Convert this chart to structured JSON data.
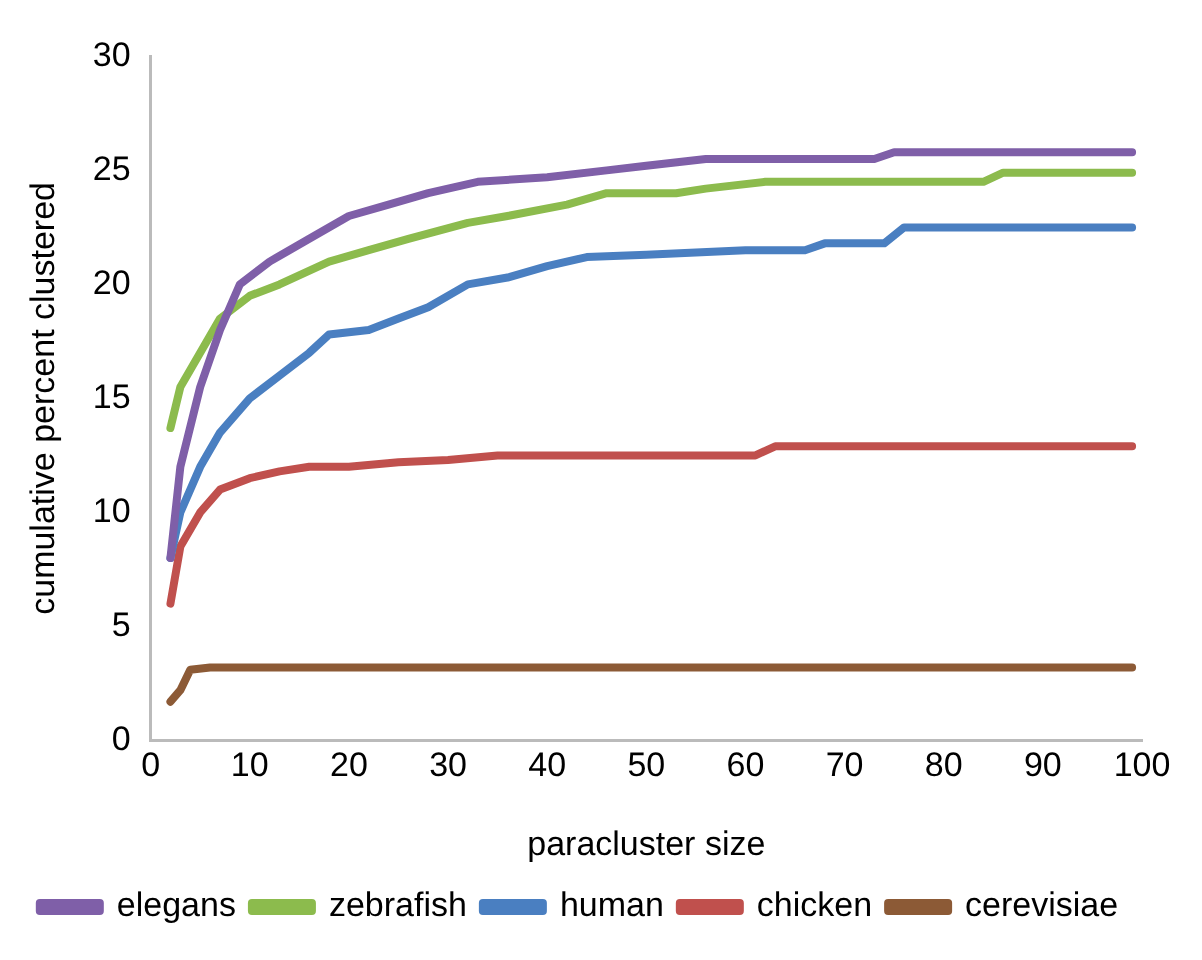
{
  "chart_data": {
    "type": "line",
    "xlabel": "paracluster size",
    "ylabel": "cumulative percent clustered",
    "xlim": [
      0,
      100
    ],
    "xticks": [
      0,
      10,
      20,
      30,
      40,
      50,
      60,
      70,
      80,
      90,
      100
    ],
    "ylim": [
      0,
      30
    ],
    "yticks": [
      0,
      5,
      10,
      15,
      20,
      25,
      30
    ],
    "grid": false,
    "legend": "bottom",
    "marker": "none",
    "line_style": "solid",
    "series": [
      {
        "name": "elegans",
        "color": "#7f5fa8",
        "x": [
          2,
          3,
          5,
          7,
          9,
          12,
          16,
          20,
          24,
          28,
          33,
          40,
          46,
          50,
          56,
          73,
          75,
          99
        ],
        "values": [
          8,
          12,
          15.5,
          18,
          20,
          21,
          22,
          23,
          23.5,
          24,
          24.5,
          24.7,
          25,
          25.2,
          25.5,
          25.5,
          25.8,
          25.8
        ]
      },
      {
        "name": "zebrafish",
        "color": "#8cbb4d",
        "x": [
          2,
          3,
          5,
          7,
          10,
          13,
          18,
          22,
          26,
          32,
          36,
          42,
          46,
          53,
          56,
          62,
          84,
          86,
          99
        ],
        "values": [
          13.7,
          15.5,
          17,
          18.5,
          19.5,
          20,
          21,
          21.5,
          22,
          22.7,
          23,
          23.5,
          24,
          24,
          24.2,
          24.5,
          24.5,
          24.9,
          24.9
        ]
      },
      {
        "name": "human",
        "color": "#4a7fc1",
        "x": [
          2,
          3,
          5,
          7,
          10,
          13,
          16,
          18,
          22,
          25,
          28,
          32,
          36,
          40,
          44,
          50,
          60,
          66,
          68,
          74,
          76,
          99
        ],
        "values": [
          8,
          10,
          12,
          13.5,
          15,
          16,
          17,
          17.8,
          18,
          18.5,
          19,
          20,
          20.3,
          20.8,
          21.2,
          21.3,
          21.5,
          21.5,
          21.8,
          21.8,
          22.5,
          22.5
        ]
      },
      {
        "name": "chicken",
        "color": "#c0504d",
        "x": [
          2,
          3,
          5,
          7,
          10,
          13,
          16,
          20,
          25,
          30,
          35,
          61,
          63,
          99
        ],
        "values": [
          6,
          8.5,
          10,
          11,
          11.5,
          11.8,
          12,
          12,
          12.2,
          12.3,
          12.5,
          12.5,
          12.9,
          12.9
        ]
      },
      {
        "name": "cerevisiae",
        "color": "#8c5a36",
        "x": [
          2,
          3,
          4,
          6,
          99
        ],
        "values": [
          1.7,
          2.2,
          3.1,
          3.2,
          3.2
        ]
      }
    ]
  }
}
